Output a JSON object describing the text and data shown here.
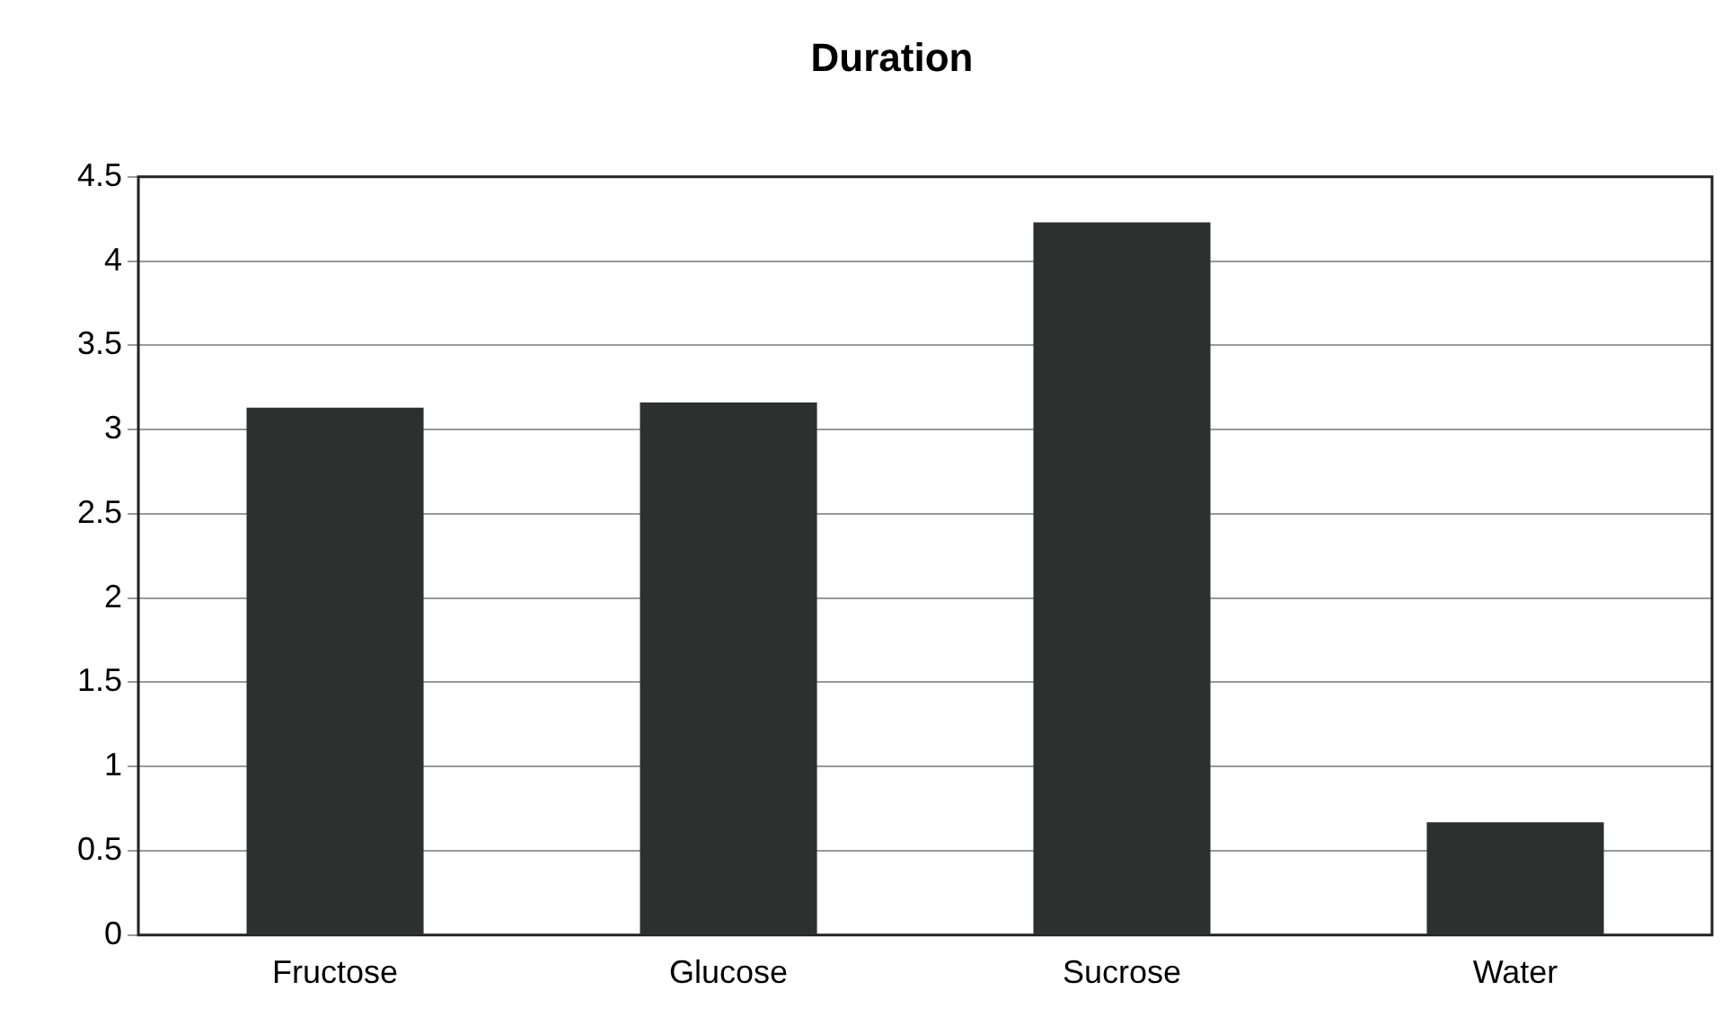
{
  "chart_data": {
    "type": "bar",
    "title": "Duration",
    "categories": [
      "Fructose",
      "Glucose",
      "Sucrose",
      "Water"
    ],
    "values": [
      3.13,
      3.16,
      4.23,
      0.67
    ],
    "color": "#2c3130",
    "ylim": [
      0,
      4.5
    ],
    "yticks": [
      0,
      0.5,
      1,
      1.5,
      2,
      2.5,
      3,
      3.5,
      4,
      4.5
    ],
    "grid": "y"
  }
}
